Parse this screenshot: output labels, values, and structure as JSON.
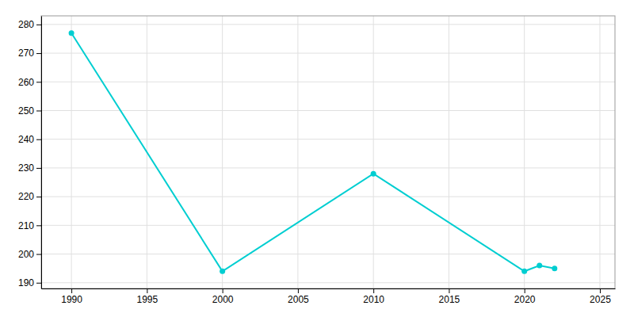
{
  "chart_data": {
    "type": "line",
    "x": [
      1990,
      2000,
      2010,
      2020,
      2021,
      2022
    ],
    "values": [
      277,
      194,
      228,
      194,
      196,
      195
    ],
    "color": "#00CED1",
    "marker": "circle",
    "xlim": [
      1988,
      2026
    ],
    "ylim": [
      188,
      283
    ],
    "xticks": [
      1990,
      1995,
      2000,
      2005,
      2010,
      2015,
      2020,
      2025
    ],
    "yticks": [
      190,
      200,
      210,
      220,
      230,
      240,
      250,
      260,
      270,
      280
    ],
    "grid": true
  }
}
